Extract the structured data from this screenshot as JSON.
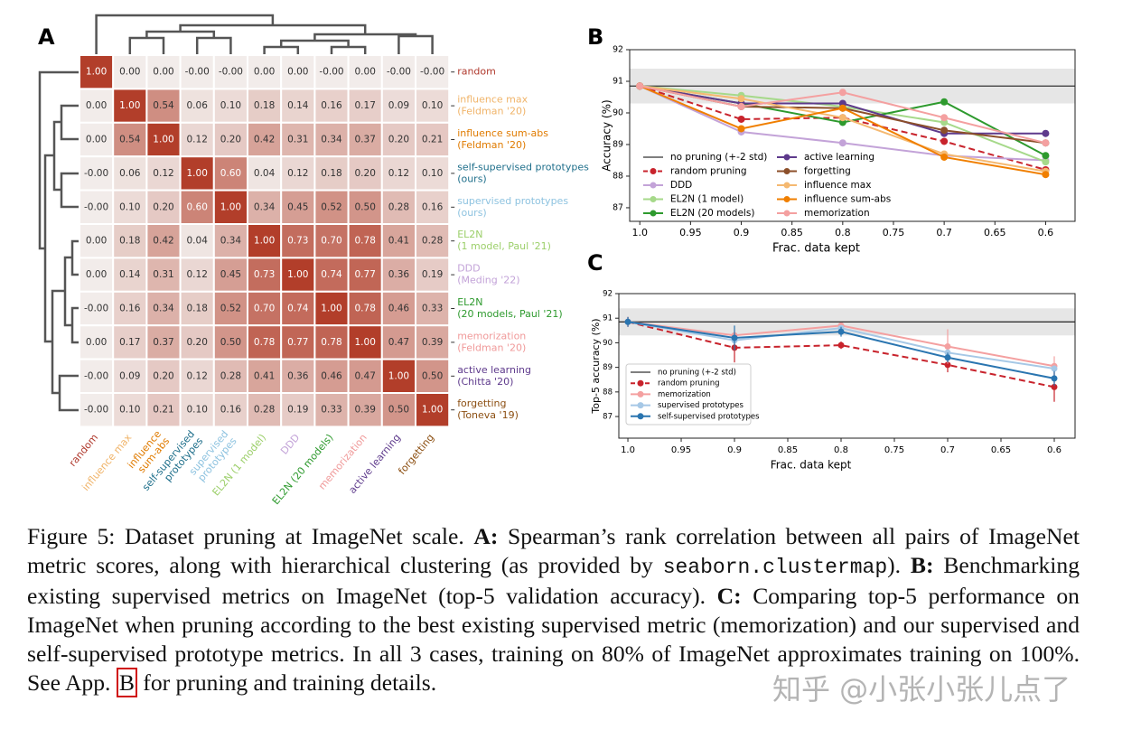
{
  "chart_data": [
    {
      "type": "heatmap",
      "label": "A",
      "row_labels": [
        [
          "random"
        ],
        [
          "influence max",
          "(Feldman '20)"
        ],
        [
          "influence sum-abs",
          "(Feldman '20)"
        ],
        [
          "self-supervised prototypes",
          "(ours)"
        ],
        [
          "supervised prototypes",
          "(ours)"
        ],
        [
          "EL2N",
          "(1 model, Paul '21)"
        ],
        [
          "DDD",
          "(Meding '22)"
        ],
        [
          "EL2N",
          "(20 models, Paul '21)"
        ],
        [
          "memorization",
          "(Feldman '20)"
        ],
        [
          "active learning",
          "(Chitta '20)"
        ],
        [
          "forgetting",
          "(Toneva '19)"
        ]
      ],
      "col_labels": [
        [
          "random"
        ],
        [
          "influence max"
        ],
        [
          "influence",
          "sum-abs"
        ],
        [
          "self-supervised",
          "prototypes"
        ],
        [
          "supervised",
          "prototypes"
        ],
        [
          "EL2N (1 model)"
        ],
        [
          "DDD"
        ],
        [
          "EL2N (20 models)"
        ],
        [
          "memorization"
        ],
        [
          "active learning"
        ],
        [
          "forgetting"
        ]
      ],
      "label_colors": [
        "#b03a2e",
        "#f0b46a",
        "#e07b00",
        "#1f6f8b",
        "#8ec3e0",
        "#9ccf6a",
        "#c3a3d8",
        "#2e9a2e",
        "#f09a9a",
        "#5e3a8c",
        "#8c4f12"
      ],
      "values": [
        [
          1.0,
          0.0,
          0.0,
          0.0,
          0.0,
          0.0,
          0.0,
          0.0,
          0.0,
          0.0,
          0.0
        ],
        [
          0.0,
          1.0,
          0.54,
          0.06,
          0.1,
          0.18,
          0.14,
          0.16,
          0.17,
          0.09,
          0.1
        ],
        [
          0.0,
          0.54,
          1.0,
          0.12,
          0.2,
          0.42,
          0.31,
          0.34,
          0.37,
          0.2,
          0.21
        ],
        [
          0.0,
          0.06,
          0.12,
          1.0,
          0.6,
          0.04,
          0.12,
          0.18,
          0.2,
          0.12,
          0.1
        ],
        [
          0.0,
          0.1,
          0.2,
          0.6,
          1.0,
          0.34,
          0.45,
          0.52,
          0.5,
          0.28,
          0.16
        ],
        [
          0.0,
          0.18,
          0.42,
          0.04,
          0.34,
          1.0,
          0.73,
          0.7,
          0.78,
          0.41,
          0.28
        ],
        [
          0.0,
          0.14,
          0.31,
          0.12,
          0.45,
          0.73,
          1.0,
          0.74,
          0.77,
          0.36,
          0.19
        ],
        [
          0.0,
          0.16,
          0.34,
          0.18,
          0.52,
          0.7,
          0.74,
          1.0,
          0.78,
          0.46,
          0.33
        ],
        [
          0.0,
          0.17,
          0.37,
          0.2,
          0.5,
          0.78,
          0.77,
          0.78,
          1.0,
          0.47,
          0.39
        ],
        [
          0.0,
          0.09,
          0.2,
          0.12,
          0.28,
          0.41,
          0.36,
          0.46,
          0.47,
          1.0,
          0.5
        ],
        [
          0.0,
          0.1,
          0.21,
          0.1,
          0.16,
          0.28,
          0.19,
          0.33,
          0.39,
          0.5,
          1.0
        ]
      ],
      "value_labels": [
        [
          "1.00",
          "0.00",
          "0.00",
          "-0.00",
          "-0.00",
          "0.00",
          "0.00",
          "-0.00",
          "0.00",
          "-0.00",
          "-0.00"
        ],
        [
          "0.00",
          "1.00",
          "0.54",
          "0.06",
          "0.10",
          "0.18",
          "0.14",
          "0.16",
          "0.17",
          "0.09",
          "0.10"
        ],
        [
          "0.00",
          "0.54",
          "1.00",
          "0.12",
          "0.20",
          "0.42",
          "0.31",
          "0.34",
          "0.37",
          "0.20",
          "0.21"
        ],
        [
          "-0.00",
          "0.06",
          "0.12",
          "1.00",
          "0.60",
          "0.04",
          "0.12",
          "0.18",
          "0.20",
          "0.12",
          "0.10"
        ],
        [
          "-0.00",
          "0.10",
          "0.20",
          "0.60",
          "1.00",
          "0.34",
          "0.45",
          "0.52",
          "0.50",
          "0.28",
          "0.16"
        ],
        [
          "0.00",
          "0.18",
          "0.42",
          "0.04",
          "0.34",
          "1.00",
          "0.73",
          "0.70",
          "0.78",
          "0.41",
          "0.28"
        ],
        [
          "0.00",
          "0.14",
          "0.31",
          "0.12",
          "0.45",
          "0.73",
          "1.00",
          "0.74",
          "0.77",
          "0.36",
          "0.19"
        ],
        [
          "-0.00",
          "0.16",
          "0.34",
          "0.18",
          "0.52",
          "0.70",
          "0.74",
          "1.00",
          "0.78",
          "0.46",
          "0.33"
        ],
        [
          "0.00",
          "0.17",
          "0.37",
          "0.20",
          "0.50",
          "0.78",
          "0.77",
          "0.78",
          "1.00",
          "0.47",
          "0.39"
        ],
        [
          "-0.00",
          "0.09",
          "0.20",
          "0.12",
          "0.28",
          "0.41",
          "0.36",
          "0.46",
          "0.47",
          "1.00",
          "0.50"
        ],
        [
          "-0.00",
          "0.10",
          "0.21",
          "0.10",
          "0.16",
          "0.28",
          "0.19",
          "0.33",
          "0.39",
          "0.50",
          "1.00"
        ]
      ]
    },
    {
      "type": "line",
      "label": "B",
      "ylabel": "Accuracy (%)",
      "xlabel": "Frac. data kept",
      "x": [
        1.0,
        0.9,
        0.8,
        0.7,
        0.6
      ],
      "xlim": [
        1.01,
        0.571
      ],
      "xticks": [
        {
          "value": 1,
          "label": "1.0"
        },
        0.95,
        0.9,
        0.85,
        0.8,
        0.75,
        0.7,
        0.65,
        0.6
      ],
      "ylim": [
        86.57,
        92
      ],
      "yticks": [
        87,
        88,
        89,
        90,
        91,
        92
      ],
      "legend": "lower left",
      "legend_columns": 2,
      "baseline": {
        "name": "no pruning (+-2 std)",
        "value": 90.85,
        "band": [
          90.3,
          91.4
        ],
        "color": "#333333"
      },
      "series": [
        {
          "name": "random pruning",
          "color": "#c8232c",
          "dashed": true,
          "values": [
            90.85,
            89.8,
            89.85,
            89.1,
            88.2
          ]
        },
        {
          "name": "DDD",
          "color": "#c3a3d8",
          "values": [
            90.85,
            89.4,
            89.05,
            88.65,
            88.5
          ]
        },
        {
          "name": "EL2N (1 model)",
          "color": "#a6d98a",
          "values": [
            90.85,
            90.55,
            90.2,
            89.7,
            88.45
          ]
        },
        {
          "name": "EL2N (20 models)",
          "color": "#2e9a2e",
          "values": [
            90.85,
            90.3,
            89.7,
            90.35,
            88.65
          ]
        },
        {
          "name": "active learning",
          "color": "#5e3a8c",
          "values": [
            90.85,
            90.3,
            90.3,
            89.35,
            89.35
          ]
        },
        {
          "name": "forgetting",
          "color": "#8c4f2a",
          "values": [
            90.85,
            90.2,
            90.15,
            89.45,
            89.05
          ]
        },
        {
          "name": "influence max",
          "color": "#f5b971",
          "values": [
            90.85,
            90.45,
            89.85,
            88.7,
            88.15
          ]
        },
        {
          "name": "influence sum-abs",
          "color": "#f07f00",
          "values": [
            90.85,
            89.5,
            90.15,
            88.6,
            88.05
          ]
        },
        {
          "name": "memorization",
          "color": "#f4a0a0",
          "values": [
            90.85,
            90.2,
            90.65,
            89.85,
            89.05
          ]
        }
      ]
    },
    {
      "type": "line",
      "label": "C",
      "ylabel": "Top-5 accuracy (%)",
      "xlabel": "Frac. data kept",
      "x": [
        1.0,
        0.9,
        0.8,
        0.7,
        0.6
      ],
      "xlim": [
        1.0085,
        0.5805
      ],
      "xticks": [
        {
          "value": 1,
          "label": "1.0"
        },
        0.95,
        0.9,
        0.85,
        0.8,
        0.75,
        0.7,
        0.65,
        0.6
      ],
      "ylim": [
        86.12,
        92
      ],
      "yticks": [
        87,
        88,
        89,
        90,
        91,
        92
      ],
      "legend": "lower left",
      "legend_columns": 1,
      "baseline": {
        "name": "no pruning (+-2 std)",
        "value": 90.85,
        "band": [
          90.3,
          91.4
        ],
        "color": "#333333"
      },
      "series": [
        {
          "name": "random pruning",
          "color": "#c8232c",
          "dashed": true,
          "values": [
            90.85,
            89.8,
            89.9,
            89.1,
            88.2
          ],
          "errors": [
            0.2,
            0.6,
            0.15,
            0.3,
            0.6
          ]
        },
        {
          "name": "memorization",
          "color": "#f4a0a0",
          "values": [
            90.85,
            90.3,
            90.7,
            89.85,
            89.05
          ],
          "errors": [
            0.2,
            0.2,
            0.1,
            0.7,
            0.4
          ]
        },
        {
          "name": "supervised prototypes",
          "color": "#a6c8e6",
          "values": [
            90.85,
            90.1,
            90.6,
            89.6,
            88.95
          ]
        },
        {
          "name": "self-supervised prototypes",
          "color": "#2a75b0",
          "values": [
            90.85,
            90.2,
            90.45,
            89.4,
            88.55
          ],
          "errors": [
            0.2,
            0.5,
            0.2,
            0.2,
            0.3
          ]
        }
      ]
    }
  ],
  "caption": {
    "segments": [
      {
        "text": "Figure 5: Dataset pruning at ImageNet scale. "
      },
      {
        "text": "A:",
        "bold": true
      },
      {
        "text": " Spearman’s rank correlation between all pairs of ImageNet metric scores, along with hierarchical clustering (as provided by "
      },
      {
        "text": "seaborn.clustermap",
        "code": true
      },
      {
        "text": "). "
      },
      {
        "text": "B:",
        "bold": true
      },
      {
        "text": " Benchmarking existing supervised metrics on ImageNet (top-5 validation accuracy). "
      },
      {
        "text": "C:",
        "bold": true
      },
      {
        "text": " Comparing top-5 performance on ImageNet when pruning according to the best existing supervised metric (memorization) and our supervised and self-supervised prototype metrics. In all 3 cases, training on 80% of ImageNet approximates training on 100%. See App. "
      },
      {
        "text": "B",
        "ref": true
      },
      {
        "text": " for pruning and training details."
      }
    ]
  },
  "watermark": "知乎 @小张小张儿点了"
}
